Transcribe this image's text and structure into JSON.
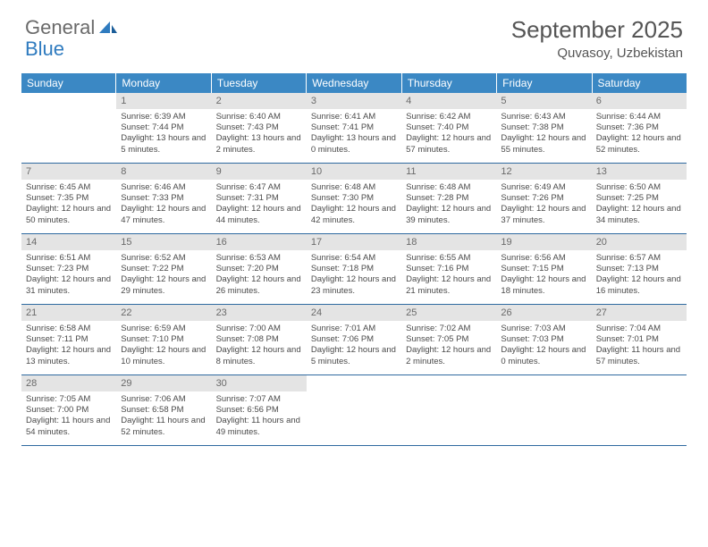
{
  "brand": {
    "word1": "General",
    "word2": "Blue"
  },
  "title": "September 2025",
  "location": "Quvasoy, Uzbekistan",
  "colors": {
    "header_bg": "#3b88c4",
    "header_text": "#ffffff",
    "daynum_bg": "#e4e4e4",
    "border": "#2f6aa0",
    "text": "#4a4a4a",
    "title_text": "#555555",
    "brand_gray": "#6a6a6a",
    "brand_blue": "#2f7bbf"
  },
  "dow": [
    "Sunday",
    "Monday",
    "Tuesday",
    "Wednesday",
    "Thursday",
    "Friday",
    "Saturday"
  ],
  "weeks": [
    [
      {
        "n": "",
        "sr": "",
        "ss": "",
        "dl": ""
      },
      {
        "n": "1",
        "sr": "Sunrise: 6:39 AM",
        "ss": "Sunset: 7:44 PM",
        "dl": "Daylight: 13 hours and 5 minutes."
      },
      {
        "n": "2",
        "sr": "Sunrise: 6:40 AM",
        "ss": "Sunset: 7:43 PM",
        "dl": "Daylight: 13 hours and 2 minutes."
      },
      {
        "n": "3",
        "sr": "Sunrise: 6:41 AM",
        "ss": "Sunset: 7:41 PM",
        "dl": "Daylight: 13 hours and 0 minutes."
      },
      {
        "n": "4",
        "sr": "Sunrise: 6:42 AM",
        "ss": "Sunset: 7:40 PM",
        "dl": "Daylight: 12 hours and 57 minutes."
      },
      {
        "n": "5",
        "sr": "Sunrise: 6:43 AM",
        "ss": "Sunset: 7:38 PM",
        "dl": "Daylight: 12 hours and 55 minutes."
      },
      {
        "n": "6",
        "sr": "Sunrise: 6:44 AM",
        "ss": "Sunset: 7:36 PM",
        "dl": "Daylight: 12 hours and 52 minutes."
      }
    ],
    [
      {
        "n": "7",
        "sr": "Sunrise: 6:45 AM",
        "ss": "Sunset: 7:35 PM",
        "dl": "Daylight: 12 hours and 50 minutes."
      },
      {
        "n": "8",
        "sr": "Sunrise: 6:46 AM",
        "ss": "Sunset: 7:33 PM",
        "dl": "Daylight: 12 hours and 47 minutes."
      },
      {
        "n": "9",
        "sr": "Sunrise: 6:47 AM",
        "ss": "Sunset: 7:31 PM",
        "dl": "Daylight: 12 hours and 44 minutes."
      },
      {
        "n": "10",
        "sr": "Sunrise: 6:48 AM",
        "ss": "Sunset: 7:30 PM",
        "dl": "Daylight: 12 hours and 42 minutes."
      },
      {
        "n": "11",
        "sr": "Sunrise: 6:48 AM",
        "ss": "Sunset: 7:28 PM",
        "dl": "Daylight: 12 hours and 39 minutes."
      },
      {
        "n": "12",
        "sr": "Sunrise: 6:49 AM",
        "ss": "Sunset: 7:26 PM",
        "dl": "Daylight: 12 hours and 37 minutes."
      },
      {
        "n": "13",
        "sr": "Sunrise: 6:50 AM",
        "ss": "Sunset: 7:25 PM",
        "dl": "Daylight: 12 hours and 34 minutes."
      }
    ],
    [
      {
        "n": "14",
        "sr": "Sunrise: 6:51 AM",
        "ss": "Sunset: 7:23 PM",
        "dl": "Daylight: 12 hours and 31 minutes."
      },
      {
        "n": "15",
        "sr": "Sunrise: 6:52 AM",
        "ss": "Sunset: 7:22 PM",
        "dl": "Daylight: 12 hours and 29 minutes."
      },
      {
        "n": "16",
        "sr": "Sunrise: 6:53 AM",
        "ss": "Sunset: 7:20 PM",
        "dl": "Daylight: 12 hours and 26 minutes."
      },
      {
        "n": "17",
        "sr": "Sunrise: 6:54 AM",
        "ss": "Sunset: 7:18 PM",
        "dl": "Daylight: 12 hours and 23 minutes."
      },
      {
        "n": "18",
        "sr": "Sunrise: 6:55 AM",
        "ss": "Sunset: 7:16 PM",
        "dl": "Daylight: 12 hours and 21 minutes."
      },
      {
        "n": "19",
        "sr": "Sunrise: 6:56 AM",
        "ss": "Sunset: 7:15 PM",
        "dl": "Daylight: 12 hours and 18 minutes."
      },
      {
        "n": "20",
        "sr": "Sunrise: 6:57 AM",
        "ss": "Sunset: 7:13 PM",
        "dl": "Daylight: 12 hours and 16 minutes."
      }
    ],
    [
      {
        "n": "21",
        "sr": "Sunrise: 6:58 AM",
        "ss": "Sunset: 7:11 PM",
        "dl": "Daylight: 12 hours and 13 minutes."
      },
      {
        "n": "22",
        "sr": "Sunrise: 6:59 AM",
        "ss": "Sunset: 7:10 PM",
        "dl": "Daylight: 12 hours and 10 minutes."
      },
      {
        "n": "23",
        "sr": "Sunrise: 7:00 AM",
        "ss": "Sunset: 7:08 PM",
        "dl": "Daylight: 12 hours and 8 minutes."
      },
      {
        "n": "24",
        "sr": "Sunrise: 7:01 AM",
        "ss": "Sunset: 7:06 PM",
        "dl": "Daylight: 12 hours and 5 minutes."
      },
      {
        "n": "25",
        "sr": "Sunrise: 7:02 AM",
        "ss": "Sunset: 7:05 PM",
        "dl": "Daylight: 12 hours and 2 minutes."
      },
      {
        "n": "26",
        "sr": "Sunrise: 7:03 AM",
        "ss": "Sunset: 7:03 PM",
        "dl": "Daylight: 12 hours and 0 minutes."
      },
      {
        "n": "27",
        "sr": "Sunrise: 7:04 AM",
        "ss": "Sunset: 7:01 PM",
        "dl": "Daylight: 11 hours and 57 minutes."
      }
    ],
    [
      {
        "n": "28",
        "sr": "Sunrise: 7:05 AM",
        "ss": "Sunset: 7:00 PM",
        "dl": "Daylight: 11 hours and 54 minutes."
      },
      {
        "n": "29",
        "sr": "Sunrise: 7:06 AM",
        "ss": "Sunset: 6:58 PM",
        "dl": "Daylight: 11 hours and 52 minutes."
      },
      {
        "n": "30",
        "sr": "Sunrise: 7:07 AM",
        "ss": "Sunset: 6:56 PM",
        "dl": "Daylight: 11 hours and 49 minutes."
      },
      {
        "n": "",
        "sr": "",
        "ss": "",
        "dl": ""
      },
      {
        "n": "",
        "sr": "",
        "ss": "",
        "dl": ""
      },
      {
        "n": "",
        "sr": "",
        "ss": "",
        "dl": ""
      },
      {
        "n": "",
        "sr": "",
        "ss": "",
        "dl": ""
      }
    ]
  ]
}
